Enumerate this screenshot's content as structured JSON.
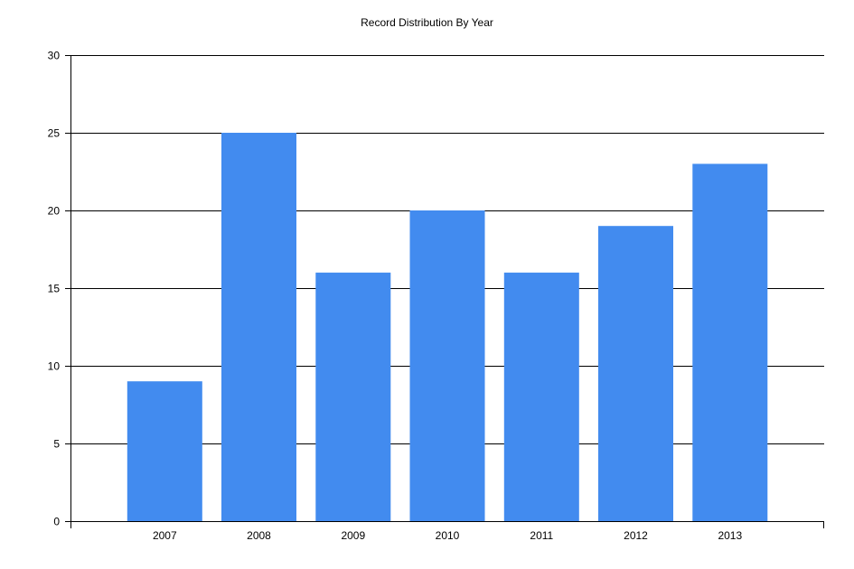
{
  "chart_data": {
    "type": "bar",
    "title": "Record Distribution By Year",
    "xlabel": "",
    "ylabel": "",
    "categories": [
      "2007",
      "2008",
      "2009",
      "2010",
      "2011",
      "2012",
      "2013"
    ],
    "values": [
      9,
      25,
      16,
      20,
      16,
      19,
      23
    ],
    "ylim": [
      0,
      30
    ],
    "yticks": [
      0,
      5,
      10,
      15,
      20,
      25,
      30
    ],
    "grid": true,
    "legend": "none",
    "bar_color": "#428BEF",
    "axis_color": "#000000"
  }
}
